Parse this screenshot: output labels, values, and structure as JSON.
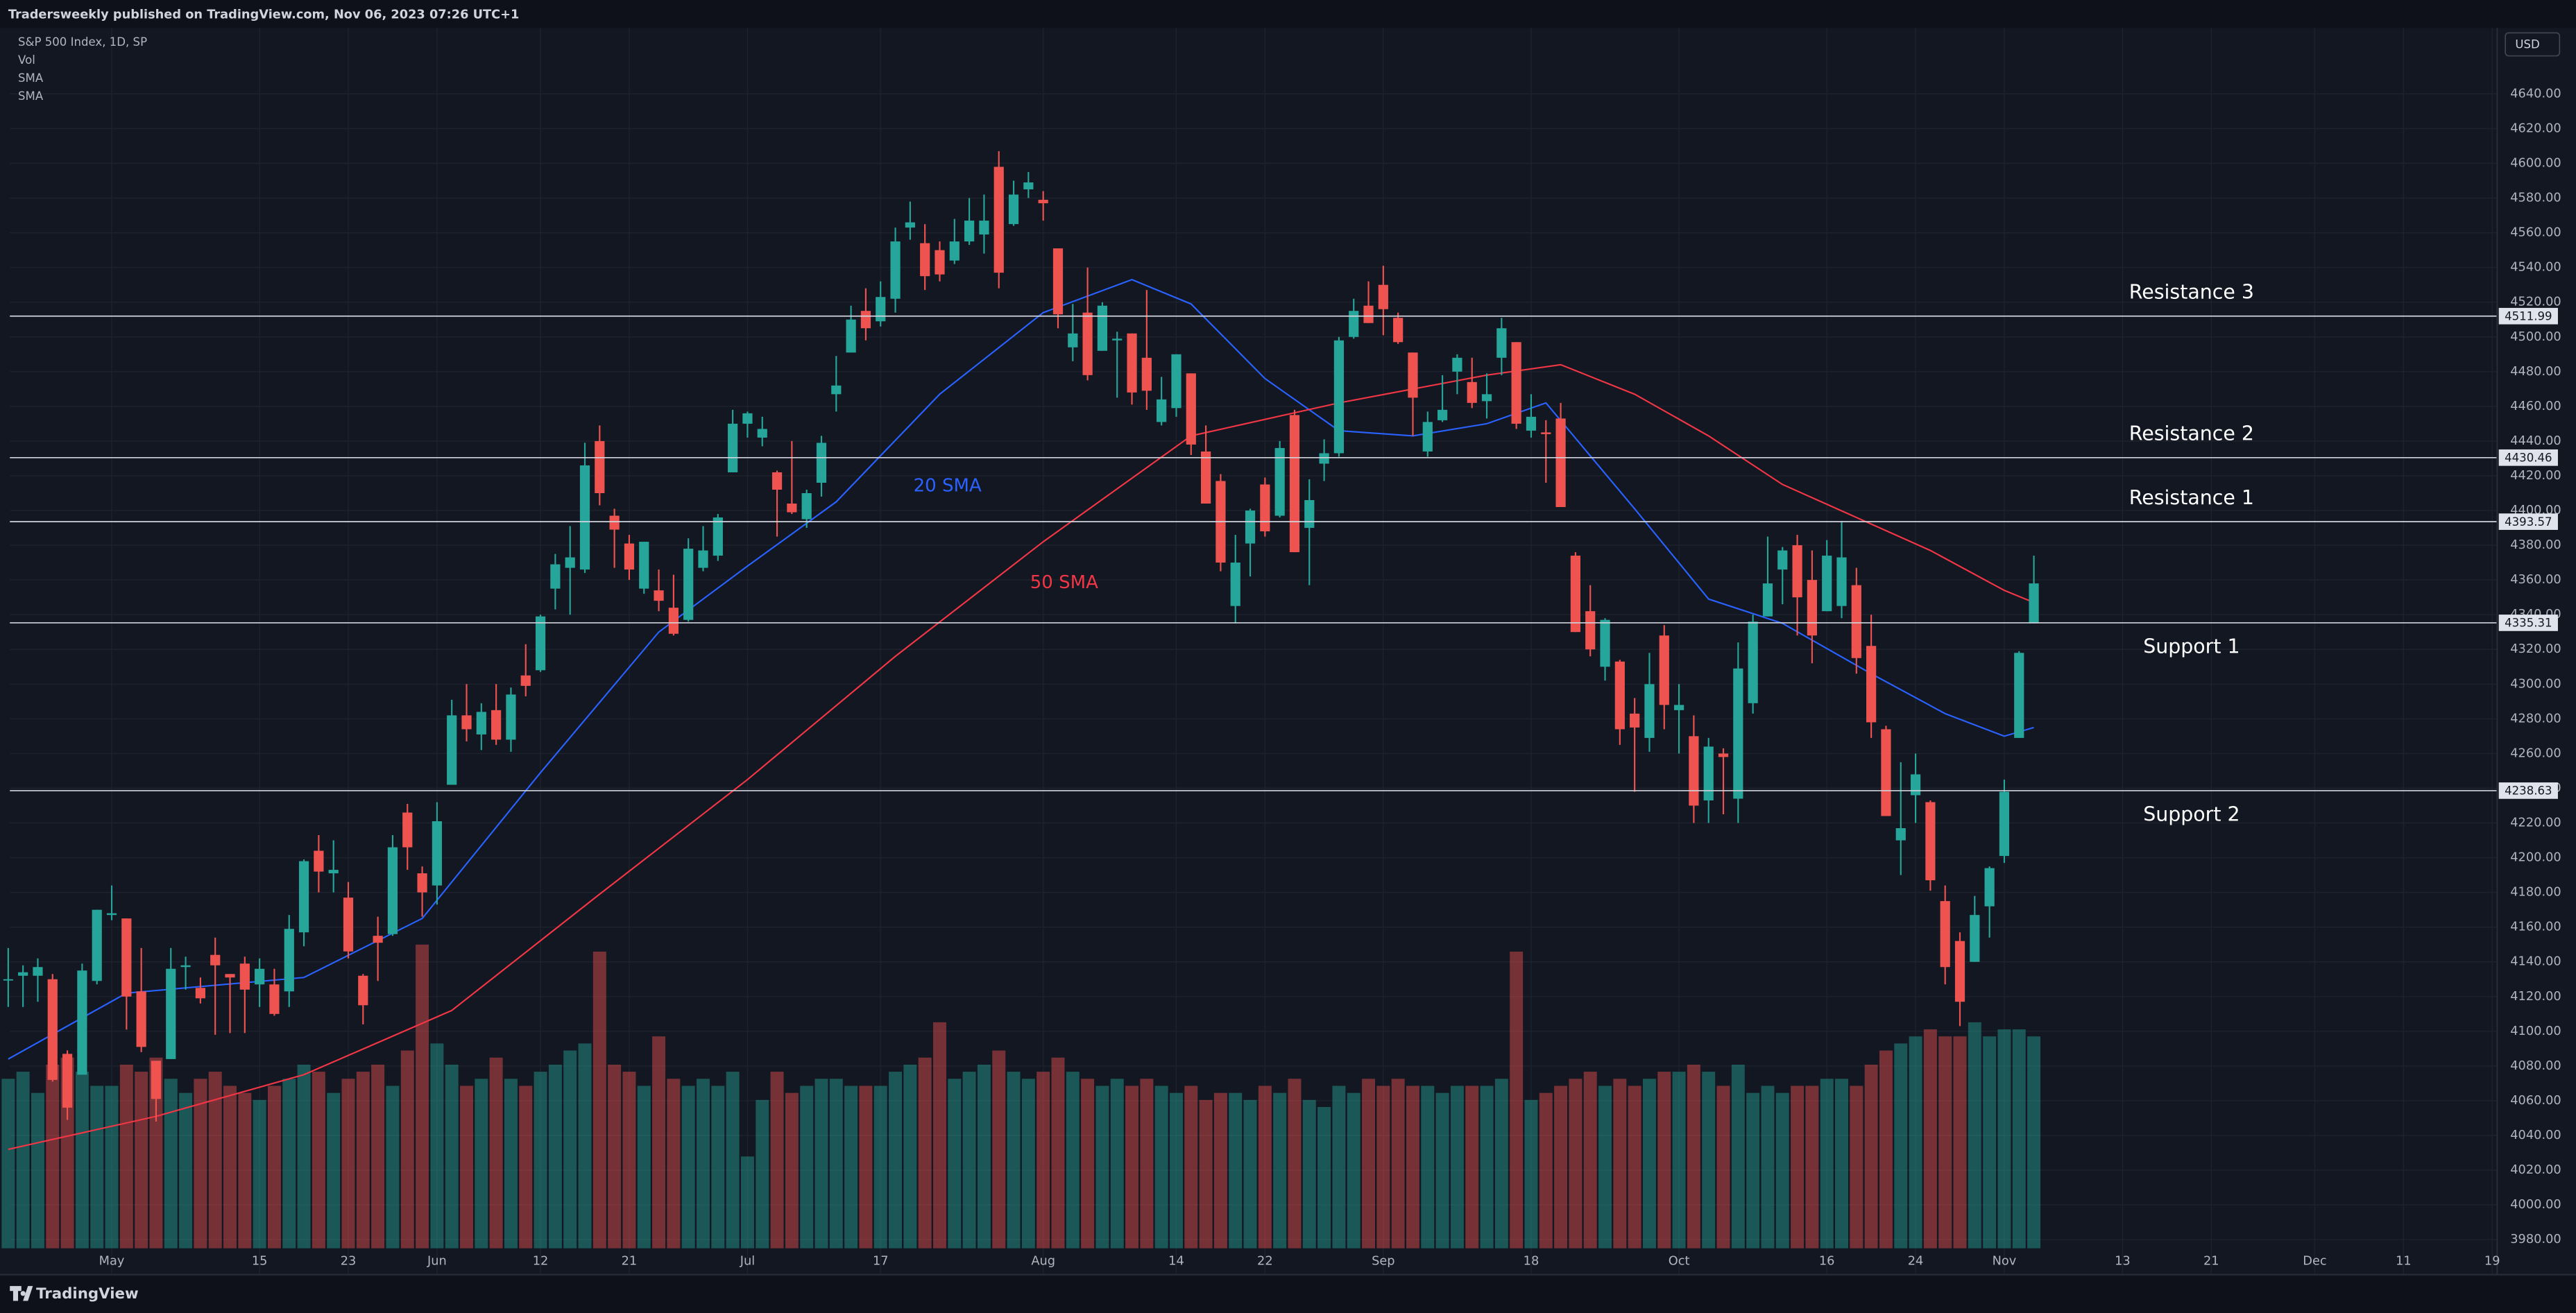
{
  "header": "Tradersweekly published on TradingView.com, Nov 06, 2023 07:26 UTC+1",
  "footer": "TradingView",
  "chart_data": {
    "type": "candlestick",
    "symbol": "S&P 500 Index, 1D, SP",
    "currency": "USD",
    "volume_name": "Vol",
    "up_color": "#26a69a",
    "down_color": "#ef5350",
    "ylim": [
      3975,
      4678
    ],
    "yticks": [
      {
        "value": 3980,
        "label": "3980.00"
      },
      {
        "value": 4000,
        "label": "4000.00"
      },
      {
        "value": 4020,
        "label": "4020.00"
      },
      {
        "value": 4040,
        "label": "4040.00"
      },
      {
        "value": 4060,
        "label": "4060.00"
      },
      {
        "value": 4080,
        "label": "4080.00"
      },
      {
        "value": 4100,
        "label": "4100.00"
      },
      {
        "value": 4120,
        "label": "4120.00"
      },
      {
        "value": 4140,
        "label": "4140.00"
      },
      {
        "value": 4160,
        "label": "4160.00"
      },
      {
        "value": 4180,
        "label": "4180.00"
      },
      {
        "value": 4200,
        "label": "4200.00"
      },
      {
        "value": 4220,
        "label": "4220.00"
      },
      {
        "value": 4240,
        "label": "4240.00"
      },
      {
        "value": 4260,
        "label": "4260.00"
      },
      {
        "value": 4280,
        "label": "4280.00"
      },
      {
        "value": 4300,
        "label": "4300.00"
      },
      {
        "value": 4320,
        "label": "4320.00"
      },
      {
        "value": 4340,
        "label": "4340.00"
      },
      {
        "value": 4360,
        "label": "4360.00"
      },
      {
        "value": 4380,
        "label": "4380.00"
      },
      {
        "value": 4400,
        "label": "4400.00"
      },
      {
        "value": 4420,
        "label": "4420.00"
      },
      {
        "value": 4440,
        "label": "4440.00"
      },
      {
        "value": 4460,
        "label": "4460.00"
      },
      {
        "value": 4480,
        "label": "4480.00"
      },
      {
        "value": 4500,
        "label": "4500.00"
      },
      {
        "value": 4520,
        "label": "4520.00"
      },
      {
        "value": 4540,
        "label": "4540.00"
      },
      {
        "value": 4560,
        "label": "4560.00"
      },
      {
        "value": 4580,
        "label": "4580.00"
      },
      {
        "value": 4600,
        "label": "4600.00"
      },
      {
        "value": 4620,
        "label": "4620.00"
      },
      {
        "value": 4640,
        "label": "4640.00"
      }
    ],
    "grid": true,
    "volume_lim": [
      0,
      6
    ],
    "categories": [
      null,
      null,
      null,
      null,
      null,
      null,
      null,
      "May",
      null,
      null,
      null,
      null,
      null,
      null,
      null,
      null,
      null,
      "15",
      null,
      null,
      null,
      null,
      null,
      "23",
      null,
      null,
      null,
      null,
      null,
      "Jun",
      null,
      null,
      null,
      null,
      null,
      null,
      "12",
      null,
      null,
      null,
      null,
      null,
      "21",
      null,
      null,
      null,
      null,
      null,
      null,
      null,
      "Jul",
      null,
      null,
      null,
      null,
      null,
      null,
      null,
      null,
      "17",
      null,
      null,
      null,
      null,
      null,
      null,
      null,
      null,
      null,
      null,
      "Aug",
      null,
      null,
      null,
      null,
      null,
      null,
      null,
      null,
      "14",
      null,
      null,
      null,
      null,
      null,
      "22",
      null,
      null,
      null,
      null,
      null,
      null,
      null,
      "Sep",
      null,
      null,
      null,
      null,
      null,
      null,
      null,
      null,
      null,
      "18",
      null,
      null,
      null,
      null,
      null,
      null,
      null,
      null,
      null,
      "Oct",
      null,
      null,
      null,
      null,
      null,
      null,
      null,
      null,
      null,
      "16",
      null,
      null,
      null,
      null,
      null,
      "24",
      null,
      null,
      null,
      null,
      null,
      "Nov",
      null,
      null,
      null,
      null,
      null,
      null,
      null,
      "13",
      null,
      null,
      null,
      null,
      null,
      "21",
      null,
      null,
      null,
      null,
      null,
      null,
      "Dec",
      null,
      null,
      null,
      null,
      null,
      "11",
      null,
      null,
      null,
      null,
      null,
      "19"
    ],
    "ohlc": [
      [
        4130,
        4148,
        4114,
        4130
      ],
      [
        4132,
        4138,
        4114,
        4134
      ],
      [
        4132,
        4142,
        4117,
        4137
      ],
      [
        4130,
        4133,
        4071,
        4072
      ],
      [
        4087,
        4089,
        4049,
        4056
      ],
      [
        4075,
        4139,
        4075,
        4135
      ],
      [
        4129,
        4170,
        4127,
        4170
      ],
      [
        4167,
        4184,
        4164,
        4168
      ],
      [
        4165,
        4165,
        4101,
        4120
      ],
      [
        4123,
        4148,
        4088,
        4091
      ],
      [
        4083,
        4083,
        4048,
        4061
      ],
      [
        4084,
        4148,
        4084,
        4136
      ],
      [
        4137,
        4143,
        4124,
        4138
      ],
      [
        4125,
        4131,
        4116,
        4119
      ],
      [
        4144,
        4154,
        4098,
        4138
      ],
      [
        4133,
        4133,
        4099,
        4131
      ],
      [
        4139,
        4143,
        4099,
        4124
      ],
      [
        4127,
        4142,
        4114,
        4136
      ],
      [
        4127,
        4136,
        4109,
        4110
      ],
      [
        4123,
        4167,
        4114,
        4159
      ],
      [
        4157,
        4199,
        4149,
        4198
      ],
      [
        4204,
        4213,
        4180,
        4192
      ],
      [
        4191,
        4210,
        4180,
        4193
      ],
      [
        4177,
        4186,
        4142,
        4146
      ],
      [
        4132,
        4133,
        4104,
        4115
      ],
      [
        4155,
        4166,
        4129,
        4151
      ],
      [
        4156,
        4213,
        4155,
        4206
      ],
      [
        4226,
        4231,
        4193,
        4206
      ],
      [
        4191,
        4195,
        4166,
        4180
      ],
      [
        4184,
        4232,
        4173,
        4221
      ],
      [
        4242,
        4291,
        4242,
        4282
      ],
      [
        4282,
        4300,
        4267,
        4274
      ],
      [
        4271,
        4289,
        4262,
        4284
      ],
      [
        4285,
        4300,
        4265,
        4268
      ],
      [
        4268,
        4298,
        4261,
        4294
      ],
      [
        4305,
        4323,
        4293,
        4299
      ],
      [
        4308,
        4340,
        4307,
        4339
      ],
      [
        4355,
        4375,
        4343,
        4369
      ],
      [
        4367,
        4391,
        4340,
        4373
      ],
      [
        4366,
        4439,
        4364,
        4426
      ],
      [
        4440,
        4449,
        4403,
        4410
      ],
      [
        4397,
        4401,
        4367,
        4389
      ],
      [
        4381,
        4386,
        4360,
        4366
      ],
      [
        4355,
        4382,
        4352,
        4382
      ],
      [
        4354,
        4366,
        4342,
        4348
      ],
      [
        4344,
        4363,
        4328,
        4329
      ],
      [
        4337,
        4384,
        4336,
        4378
      ],
      [
        4367,
        4391,
        4365,
        4377
      ],
      [
        4374,
        4398,
        4371,
        4396
      ],
      [
        4422,
        4458,
        4422,
        4450
      ],
      [
        4450,
        4457,
        4442,
        4456
      ],
      [
        4442,
        4454,
        4437,
        4447
      ],
      [
        4422,
        4423,
        4385,
        4412
      ],
      [
        4404,
        4440,
        4398,
        4399
      ],
      [
        4395,
        4412,
        4390,
        4410
      ],
      [
        4416,
        4443,
        4408,
        4439
      ],
      [
        4467,
        4489,
        4457,
        4472
      ],
      [
        4491,
        4518,
        4491,
        4510
      ],
      [
        4515,
        4528,
        4498,
        4505
      ],
      [
        4509,
        4532,
        4506,
        4523
      ],
      [
        4522,
        4563,
        4514,
        4555
      ],
      [
        4563,
        4578,
        4556,
        4566
      ],
      [
        4554,
        4565,
        4527,
        4535
      ],
      [
        4550,
        4555,
        4532,
        4536
      ],
      [
        4544,
        4568,
        4542,
        4555
      ],
      [
        4555,
        4580,
        4553,
        4567
      ],
      [
        4559,
        4582,
        4548,
        4567
      ],
      [
        4598,
        4607,
        4528,
        4537
      ],
      [
        4565,
        4590,
        4564,
        4582
      ],
      [
        4585,
        4595,
        4580,
        4589
      ],
      [
        4579,
        4584,
        4567,
        4577
      ],
      [
        4551,
        4551,
        4505,
        4513
      ],
      [
        4494,
        4519,
        4486,
        4502
      ],
      [
        4514,
        4540,
        4475,
        4478
      ],
      [
        4492,
        4520,
        4492,
        4518
      ],
      [
        4498,
        4503,
        4465,
        4499
      ],
      [
        4502,
        4502,
        4461,
        4468
      ],
      [
        4488,
        4527,
        4458,
        4469
      ],
      [
        4451,
        4477,
        4449,
        4464
      ],
      [
        4459,
        4490,
        4454,
        4490
      ],
      [
        4479,
        4479,
        4432,
        4438
      ],
      [
        4434,
        4449,
        4404,
        4404
      ],
      [
        4417,
        4421,
        4365,
        4370
      ],
      [
        4345,
        4386,
        4335,
        4370
      ],
      [
        4381,
        4401,
        4362,
        4400
      ],
      [
        4415,
        4419,
        4385,
        4388
      ],
      [
        4397,
        4440,
        4396,
        4436
      ],
      [
        4455,
        4458,
        4376,
        4376
      ],
      [
        4390,
        4418,
        4357,
        4406
      ],
      [
        4427,
        4441,
        4417,
        4433
      ],
      [
        4433,
        4500,
        4431,
        4498
      ],
      [
        4500,
        4522,
        4499,
        4515
      ],
      [
        4518,
        4532,
        4508,
        4508
      ],
      [
        4530,
        4541,
        4501,
        4516
      ],
      [
        4511,
        4514,
        4496,
        4497
      ],
      [
        4491,
        4491,
        4443,
        4465
      ],
      [
        4434,
        4457,
        4431,
        4451
      ],
      [
        4452,
        4478,
        4451,
        4458
      ],
      [
        4480,
        4490,
        4467,
        4488
      ],
      [
        4474,
        4488,
        4459,
        4462
      ],
      [
        4463,
        4479,
        4453,
        4467
      ],
      [
        4488,
        4511,
        4478,
        4505
      ],
      [
        4497,
        4497,
        4447,
        4450
      ],
      [
        4446,
        4467,
        4442,
        4454
      ],
      [
        4445,
        4452,
        4416,
        4444
      ],
      [
        4453,
        4462,
        4402,
        4402
      ],
      [
        4374,
        4376,
        4330,
        4330
      ],
      [
        4342,
        4357,
        4316,
        4320
      ],
      [
        4310,
        4338,
        4302,
        4337
      ],
      [
        4313,
        4314,
        4265,
        4274
      ],
      [
        4283,
        4292,
        4238,
        4275
      ],
      [
        4269,
        4318,
        4261,
        4300
      ],
      [
        4328,
        4334,
        4274,
        4288
      ],
      [
        4285,
        4300,
        4260,
        4288
      ],
      [
        4270,
        4282,
        4220,
        4230
      ],
      [
        4233,
        4269,
        4220,
        4264
      ],
      [
        4260,
        4263,
        4225,
        4258
      ],
      [
        4234,
        4324,
        4220,
        4309
      ],
      [
        4289,
        4340,
        4283,
        4336
      ],
      [
        4339,
        4385,
        4339,
        4358
      ],
      [
        4366,
        4379,
        4346,
        4377
      ],
      [
        4380,
        4386,
        4328,
        4350
      ],
      [
        4360,
        4377,
        4312,
        4328
      ],
      [
        4342,
        4383,
        4342,
        4374
      ],
      [
        4345,
        4394,
        4338,
        4373
      ],
      [
        4357,
        4367,
        4306,
        4315
      ],
      [
        4322,
        4340,
        4269,
        4278
      ],
      [
        4274,
        4276,
        4224,
        4224
      ],
      [
        4210,
        4255,
        4190,
        4217
      ],
      [
        4236,
        4260,
        4220,
        4248
      ],
      [
        4232,
        4233,
        4181,
        4187
      ],
      [
        4175,
        4184,
        4127,
        4137
      ],
      [
        4152,
        4157,
        4103,
        4117
      ],
      [
        4140,
        4178,
        4140,
        4167
      ],
      [
        4172,
        4195,
        4154,
        4194
      ],
      [
        4201,
        4245,
        4197,
        4238
      ],
      [
        4269,
        4319,
        4269,
        4318
      ],
      [
        4335,
        4374,
        4335,
        4358
      ],
      null,
      null,
      null,
      null,
      null,
      null,
      null,
      null,
      null,
      null,
      null,
      null,
      null,
      null,
      null,
      null,
      null,
      null,
      null,
      null,
      null,
      null,
      null,
      null,
      null,
      null,
      null,
      null,
      null,
      null,
      null
    ],
    "volume": [
      2.4,
      2.5,
      2.2,
      2.6,
      2.7,
      2.5,
      2.3,
      2.3,
      2.6,
      2.5,
      2.7,
      2.4,
      2.2,
      2.4,
      2.5,
      2.3,
      2.2,
      2.1,
      2.3,
      2.4,
      2.6,
      2.5,
      2.2,
      2.4,
      2.5,
      2.6,
      2.3,
      2.8,
      4.3,
      2.9,
      2.6,
      2.3,
      2.4,
      2.7,
      2.4,
      2.3,
      2.5,
      2.6,
      2.8,
      2.9,
      4.2,
      2.6,
      2.5,
      2.3,
      3.0,
      2.4,
      2.3,
      2.4,
      2.3,
      2.5,
      1.3,
      2.1,
      2.5,
      2.2,
      2.3,
      2.4,
      2.4,
      2.3,
      2.3,
      2.3,
      2.5,
      2.6,
      2.7,
      3.2,
      2.4,
      2.5,
      2.6,
      2.8,
      2.5,
      2.4,
      2.5,
      2.7,
      2.5,
      2.4,
      2.3,
      2.4,
      2.3,
      2.4,
      2.3,
      2.2,
      2.3,
      2.1,
      2.2,
      2.2,
      2.1,
      2.3,
      2.2,
      2.4,
      2.1,
      2.0,
      2.3,
      2.2,
      2.4,
      2.3,
      2.4,
      2.3,
      2.3,
      2.2,
      2.3,
      2.3,
      2.3,
      2.4,
      4.2,
      2.1,
      2.2,
      2.3,
      2.4,
      2.5,
      2.3,
      2.4,
      2.3,
      2.4,
      2.5,
      2.5,
      2.6,
      2.5,
      2.3,
      2.6,
      2.2,
      2.3,
      2.2,
      2.3,
      2.3,
      2.4,
      2.4,
      2.3,
      2.6,
      2.8,
      2.9,
      3.0,
      3.1,
      3.0,
      3.0,
      3.2,
      3.0,
      3.1,
      3.1,
      3.0,
      null,
      null,
      null,
      null,
      null,
      null,
      null,
      null,
      null,
      null,
      null,
      null,
      null,
      null,
      null,
      null,
      null,
      null,
      null,
      null,
      null,
      null,
      null,
      null,
      null,
      null,
      null,
      null,
      null,
      null,
      null
    ],
    "sma": [
      {
        "name": "SMA",
        "annotation": "20 SMA",
        "color": "#2962ff",
        "x": [
          0,
          8,
          20,
          28,
          36,
          44,
          50,
          56,
          63,
          70,
          76,
          80,
          85,
          90,
          95,
          100,
          104,
          110,
          115,
          120,
          126,
          131,
          135,
          137
        ],
        "values": [
          4084,
          4122,
          4131,
          4165,
          4249,
          4330,
          4368,
          4405,
          4467,
          4514,
          4533,
          4519,
          4476,
          4446,
          4443,
          4450,
          4462,
          4401,
          4349,
          4335,
          4306,
          4283,
          4270,
          4275
        ]
      },
      {
        "name": "SMA",
        "annotation": "50 SMA",
        "color": "#f23645",
        "x": [
          0,
          10,
          20,
          30,
          40,
          50,
          60,
          70,
          80,
          90,
          100,
          105,
          110,
          115,
          120,
          125,
          130,
          135,
          137
        ],
        "values": [
          4032,
          4051,
          4075,
          4112,
          4179,
          4245,
          4316,
          4382,
          4443,
          4462,
          4478,
          4484,
          4467,
          4443,
          4415,
          4396,
          4377,
          4354,
          4347
        ]
      }
    ],
    "levels": [
      {
        "name": "Resistance 3",
        "value": 4511.99,
        "label_position": "above"
      },
      {
        "name": "Resistance 2",
        "value": 4430.46,
        "label_position": "above"
      },
      {
        "name": "Resistance 1",
        "value": 4393.57,
        "label_position": "above"
      },
      {
        "name": "Support 1",
        "value": 4335.31,
        "label_position": "below"
      },
      {
        "name": "Support 2",
        "value": 4238.63,
        "label_position": "below"
      }
    ]
  }
}
